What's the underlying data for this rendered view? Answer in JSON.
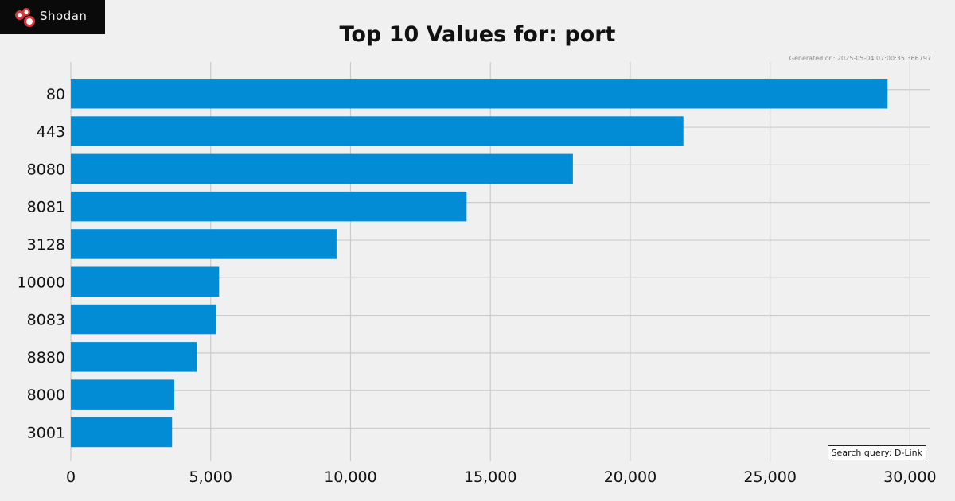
{
  "brand": {
    "name": "Shodan",
    "background": "#0a0a0a",
    "icon": "shodan-logo-icon",
    "accent": "#d9383a"
  },
  "header": {
    "generated_text": "Generated on: 2025-05-04 07:00:35.366797"
  },
  "footer": {
    "query_text": "Search query: D-Link"
  },
  "colors": {
    "bar": "#038cd6",
    "grid": "#cbcbcb",
    "background": "#f0f0f0"
  },
  "chart_data": {
    "type": "bar",
    "orientation": "horizontal",
    "title": "Top 10 Values for: port",
    "xlabel": "",
    "ylabel": "",
    "categories": [
      "80",
      "443",
      "8080",
      "8081",
      "3128",
      "10000",
      "8083",
      "8880",
      "8000",
      "3001"
    ],
    "values": [
      29200,
      21900,
      17950,
      14150,
      9500,
      5300,
      5200,
      4500,
      3700,
      3620
    ],
    "xlim": [
      0,
      30700
    ],
    "xticks": [
      0,
      5000,
      10000,
      15000,
      20000,
      25000,
      30000
    ],
    "xtick_labels": [
      "0",
      "5,000",
      "10,000",
      "15,000",
      "20,000",
      "25,000",
      "30,000"
    ],
    "grid": true,
    "legend": "none"
  }
}
